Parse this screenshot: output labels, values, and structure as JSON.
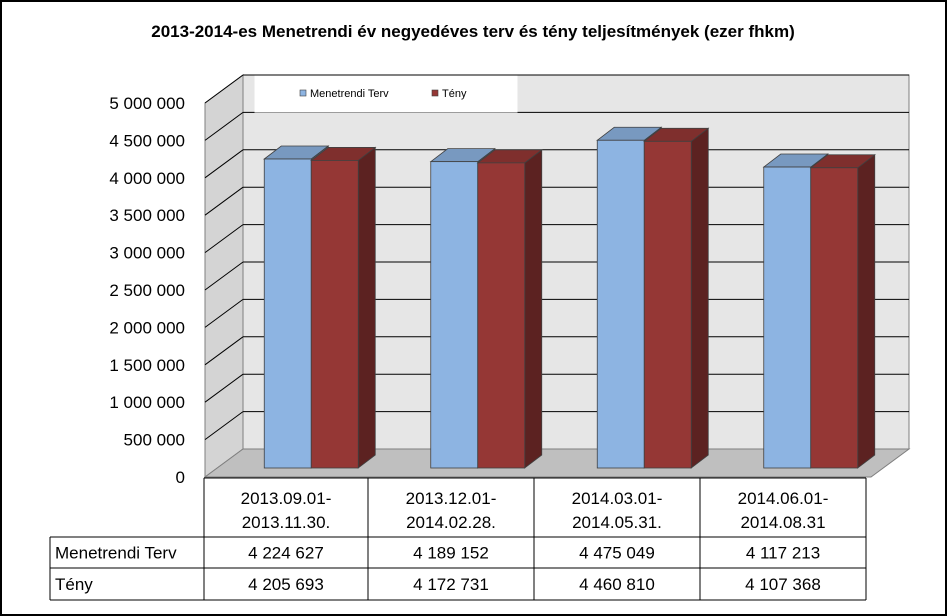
{
  "chart_data": {
    "type": "bar",
    "title": "2013-2014-es Menetrendi év negyedéves terv és tény teljesítmények  (ezer fhkm)",
    "categories": [
      [
        "2013.09.01-",
        "2013.11.30."
      ],
      [
        "2013.12.01-",
        "2014.02.28."
      ],
      [
        "2014.03.01-",
        "2014.05.31."
      ],
      [
        "2014.06.01-",
        "2014.08.31"
      ]
    ],
    "series": [
      {
        "name": "Menetrendi Terv",
        "values": [
          4224627,
          4189152,
          4475049,
          4117213
        ],
        "labels": [
          "4 224 627",
          "4 189 152",
          "4 475 049",
          "4 117 213"
        ],
        "color": "#8DB4E2"
      },
      {
        "name": "Tény",
        "values": [
          4205693,
          4172731,
          4460810,
          4107368
        ],
        "labels": [
          "4 205 693",
          "4 172 731",
          "4 460 810",
          "4 107 368"
        ],
        "color": "#953735"
      }
    ],
    "ylim": [
      0,
      5000000
    ],
    "yticks": [
      {
        "value": 0,
        "label": "0"
      },
      {
        "value": 500000,
        "label": "500 000"
      },
      {
        "value": 1000000,
        "label": "1 000 000"
      },
      {
        "value": 1500000,
        "label": "1 500 000"
      },
      {
        "value": 2000000,
        "label": "2 000 000"
      },
      {
        "value": 2500000,
        "label": "2 500 000"
      },
      {
        "value": 3000000,
        "label": "3 000 000"
      },
      {
        "value": 3500000,
        "label": "3 500 000"
      },
      {
        "value": 4000000,
        "label": "4 000 000"
      },
      {
        "value": 4500000,
        "label": "4 500 000"
      },
      {
        "value": 5000000,
        "label": "5 000 000"
      }
    ],
    "grid": true,
    "legend": "top",
    "data_table": true,
    "style": "3d-clustered-column"
  }
}
